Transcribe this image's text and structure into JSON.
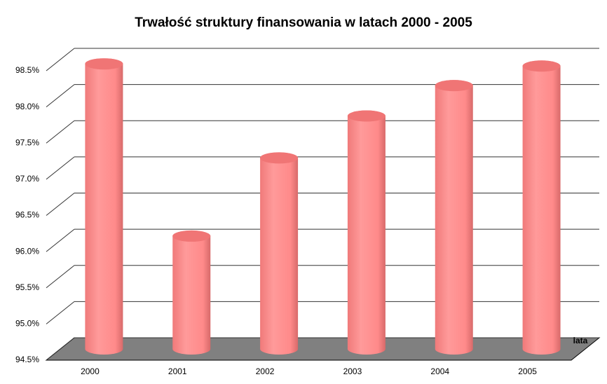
{
  "chart_data": {
    "type": "bar",
    "title": "Trwałość struktury finansowania w latach 2000 - 2005",
    "x_label": "lata",
    "categories": [
      "2000",
      "2001",
      "2002",
      "2003",
      "2004",
      "2005"
    ],
    "values": [
      98.44,
      96.06,
      97.14,
      97.72,
      98.14,
      98.41
    ],
    "color": "#ff8a8a",
    "ylim": [
      94.5,
      98.5
    ],
    "yticks": [
      {
        "value": 94.5,
        "label": "94.5%"
      },
      {
        "value": 95.0,
        "label": "95.0%"
      },
      {
        "value": 95.5,
        "label": "95.5%"
      },
      {
        "value": 96.0,
        "label": "96.0%"
      },
      {
        "value": 96.5,
        "label": "96.5%"
      },
      {
        "value": 97.0,
        "label": "97.0%"
      },
      {
        "value": 97.5,
        "label": "97.5%"
      },
      {
        "value": 98.0,
        "label": "98.0%"
      },
      {
        "value": 98.5,
        "label": "98.5%"
      }
    ],
    "grid": true
  }
}
